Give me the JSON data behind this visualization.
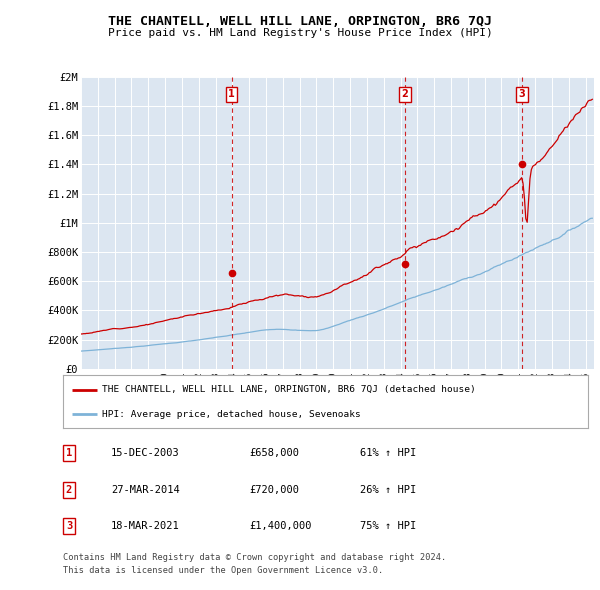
{
  "title": "THE CHANTELL, WELL HILL LANE, ORPINGTON, BR6 7QJ",
  "subtitle": "Price paid vs. HM Land Registry's House Price Index (HPI)",
  "ylabel_ticks": [
    "£0",
    "£200K",
    "£400K",
    "£600K",
    "£800K",
    "£1M",
    "£1.2M",
    "£1.4M",
    "£1.6M",
    "£1.8M",
    "£2M"
  ],
  "ytick_values": [
    0,
    200000,
    400000,
    600000,
    800000,
    1000000,
    1200000,
    1400000,
    1600000,
    1800000,
    2000000
  ],
  "ylim": [
    0,
    2000000
  ],
  "xlim_start": 1995.0,
  "xlim_end": 2025.5,
  "xtick_years": [
    1995,
    1996,
    1997,
    1998,
    1999,
    2000,
    2001,
    2002,
    2003,
    2004,
    2005,
    2006,
    2007,
    2008,
    2009,
    2010,
    2011,
    2012,
    2013,
    2014,
    2015,
    2016,
    2017,
    2018,
    2019,
    2020,
    2021,
    2022,
    2023,
    2024,
    2025
  ],
  "background_color": "#ffffff",
  "plot_bg_color": "#dce6f1",
  "grid_color": "#ffffff",
  "red_line_color": "#cc0000",
  "blue_line_color": "#7eb3d8",
  "dashed_line_color": "#cc0000",
  "transaction_markers": [
    {
      "x": 2003.958,
      "label": "1",
      "price": 658000,
      "date": "15-DEC-2003",
      "pct": "61%"
    },
    {
      "x": 2014.25,
      "label": "2",
      "price": 720000,
      "date": "27-MAR-2014",
      "pct": "26%"
    },
    {
      "x": 2021.208,
      "label": "3",
      "price": 1400000,
      "date": "18-MAR-2021",
      "pct": "75%"
    }
  ],
  "legend_red_label": "THE CHANTELL, WELL HILL LANE, ORPINGTON, BR6 7QJ (detached house)",
  "legend_blue_label": "HPI: Average price, detached house, Sevenoaks",
  "table_rows": [
    [
      "1",
      "15-DEC-2003",
      "£658,000",
      "61% ↑ HPI"
    ],
    [
      "2",
      "27-MAR-2014",
      "£720,000",
      "26% ↑ HPI"
    ],
    [
      "3",
      "18-MAR-2021",
      "£1,400,000",
      "75% ↑ HPI"
    ]
  ],
  "footer_line1": "Contains HM Land Registry data © Crown copyright and database right 2024.",
  "footer_line2": "This data is licensed under the Open Government Licence v3.0.",
  "red_seed": 12,
  "blue_seed": 7,
  "n_points": 370
}
